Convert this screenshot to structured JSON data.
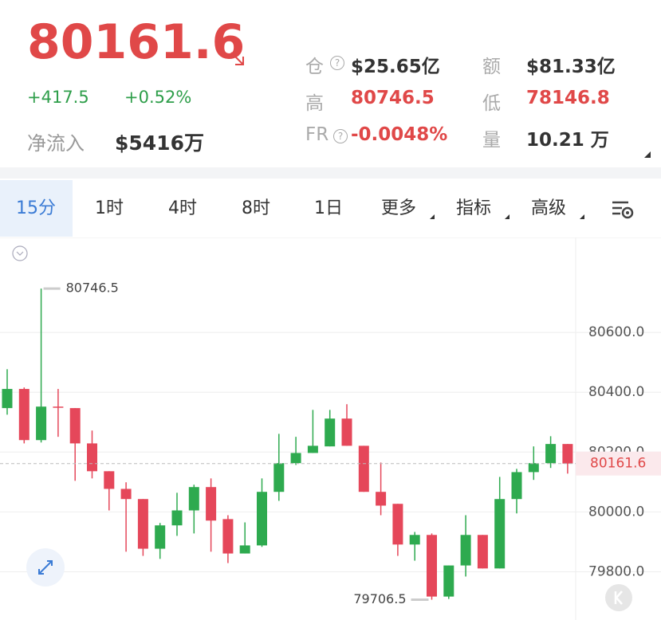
{
  "header": {
    "price": "80161.6",
    "change": "+417.5",
    "change_pct": "+0.52%",
    "net_inflow_label": "净流入",
    "net_inflow": "$5416万",
    "stats": [
      [
        "仓",
        "$25.65亿",
        "额",
        "$81.33亿"
      ],
      [
        "高",
        "80746.5",
        "低",
        "78146.8"
      ],
      [
        "FR",
        "-0.0048%",
        "量",
        "10.21 万"
      ]
    ]
  },
  "tabs": [
    "15分",
    "1时",
    "4时",
    "8时",
    "1日",
    "更多",
    "指标",
    "高级"
  ],
  "chart_data": {
    "type": "candlestick",
    "up_color": "#2eaa4f",
    "down_color": "#e5475a",
    "ylim": [
      79660,
      80912
    ],
    "yticks": [
      {
        "value": 79800,
        "label": "79800.0"
      },
      {
        "value": 80000,
        "label": "80000.0"
      },
      {
        "value": 80200,
        "label": "80200.0"
      },
      {
        "value": 80400,
        "label": "80400.0"
      },
      {
        "value": 80600,
        "label": "80600.0"
      }
    ],
    "grid": true,
    "candles": [
      {
        "open": 80347,
        "high": 80477,
        "low": 80325,
        "close": 80411
      },
      {
        "open": 80411,
        "high": 80416,
        "low": 80229,
        "close": 80240
      },
      {
        "open": 80240,
        "high": 80746.5,
        "low": 80232,
        "close": 80352
      },
      {
        "open": 80352,
        "high": 80411,
        "low": 80251,
        "close": 80350
      },
      {
        "open": 80347,
        "high": 80347,
        "low": 80104,
        "close": 80229
      },
      {
        "open": 80229,
        "high": 80272,
        "low": 80112,
        "close": 80136
      },
      {
        "open": 80136,
        "high": 80136,
        "low": 80005,
        "close": 80077
      },
      {
        "open": 80077,
        "high": 80099,
        "low": 79867,
        "close": 80043
      },
      {
        "open": 80043,
        "high": 80043,
        "low": 79853,
        "close": 79877
      },
      {
        "open": 79877,
        "high": 79963,
        "low": 79843,
        "close": 79955
      },
      {
        "open": 79955,
        "high": 80064,
        "low": 79920,
        "close": 80005
      },
      {
        "open": 80005,
        "high": 80091,
        "low": 79928,
        "close": 80083
      },
      {
        "open": 80083,
        "high": 80112,
        "low": 79867,
        "close": 79971
      },
      {
        "open": 79976,
        "high": 79989,
        "low": 79829,
        "close": 79861
      },
      {
        "open": 79861,
        "high": 79965,
        "low": 79861,
        "close": 79888
      },
      {
        "open": 79888,
        "high": 80112,
        "low": 79883,
        "close": 80067
      },
      {
        "open": 80067,
        "high": 80261,
        "low": 80037,
        "close": 80163
      },
      {
        "open": 80163,
        "high": 80251,
        "low": 80157,
        "close": 80197
      },
      {
        "open": 80197,
        "high": 80341,
        "low": 80197,
        "close": 80221
      },
      {
        "open": 80219,
        "high": 80341,
        "low": 80219,
        "close": 80312
      },
      {
        "open": 80312,
        "high": 80360,
        "low": 80221,
        "close": 80221
      },
      {
        "open": 80221,
        "high": 80221,
        "low": 80067,
        "close": 80067
      },
      {
        "open": 80067,
        "high": 80165,
        "low": 79989,
        "close": 80021
      },
      {
        "open": 80027,
        "high": 80027,
        "low": 79853,
        "close": 79891
      },
      {
        "open": 79891,
        "high": 79933,
        "low": 79837,
        "close": 79923
      },
      {
        "open": 79923,
        "high": 79928,
        "low": 79706.5,
        "close": 79717
      },
      {
        "open": 79717,
        "high": 79821,
        "low": 79709,
        "close": 79821
      },
      {
        "open": 79821,
        "high": 79989,
        "low": 79784,
        "close": 79923
      },
      {
        "open": 79923,
        "high": 79923,
        "low": 79811,
        "close": 79811
      },
      {
        "open": 79811,
        "high": 80117,
        "low": 79811,
        "close": 80043
      },
      {
        "open": 80043,
        "high": 80144,
        "low": 79995,
        "close": 80133
      },
      {
        "open": 80133,
        "high": 80219,
        "low": 80107,
        "close": 80163
      },
      {
        "open": 80163,
        "high": 80253,
        "low": 80147,
        "close": 80227
      },
      {
        "open": 80227,
        "high": 80227,
        "low": 80128,
        "close": 80161.6
      }
    ]
  }
}
